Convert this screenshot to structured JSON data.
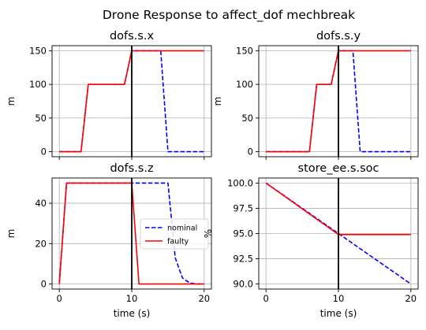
{
  "figure": {
    "title": "Drone Response to affect_dof mechbreak"
  },
  "colors": {
    "nominal": "#0000ff",
    "faulty": "#ff0000",
    "fault_line": "#000000",
    "grid": "#b0b0b0"
  },
  "chart_data": [
    {
      "type": "line",
      "title": "dofs.s.x",
      "xlabel": "",
      "ylabel": "m",
      "xlim": [
        -1,
        21
      ],
      "ylim": [
        -7.5,
        157.5
      ],
      "xticks": [
        0,
        10,
        20
      ],
      "xtick_labels": [
        "",
        "",
        ""
      ],
      "yticks": [
        0,
        50,
        100,
        150
      ],
      "ytick_labels": [
        "0",
        "50",
        "100",
        "150"
      ],
      "grid": true,
      "fault_time": 10,
      "series": [
        {
          "name": "nominal",
          "style": "dashed",
          "color": "#0000ff",
          "x": [
            0,
            3,
            4,
            9,
            10,
            14,
            15,
            20
          ],
          "y": [
            0,
            0,
            100,
            100,
            150,
            150,
            0,
            0
          ]
        },
        {
          "name": "faulty",
          "style": "solid",
          "color": "#ff0000",
          "x": [
            0,
            3,
            4,
            9,
            10,
            20
          ],
          "y": [
            0,
            0,
            100,
            100,
            150,
            150
          ]
        }
      ]
    },
    {
      "type": "line",
      "title": "dofs.s.y",
      "xlabel": "",
      "ylabel": "m",
      "xlim": [
        -1,
        21
      ],
      "ylim": [
        -7.5,
        157.5
      ],
      "xticks": [
        0,
        10,
        20
      ],
      "xtick_labels": [
        "",
        "",
        ""
      ],
      "yticks": [
        0,
        50,
        100,
        150
      ],
      "ytick_labels": [
        "0",
        "50",
        "100",
        "150"
      ],
      "grid": true,
      "fault_time": 10,
      "series": [
        {
          "name": "nominal",
          "style": "dashed",
          "color": "#0000ff",
          "x": [
            0,
            6,
            7,
            9,
            10,
            12,
            13,
            20
          ],
          "y": [
            0,
            0,
            100,
            100,
            150,
            150,
            0,
            0
          ]
        },
        {
          "name": "faulty",
          "style": "solid",
          "color": "#ff0000",
          "x": [
            0,
            6,
            7,
            9,
            10,
            20
          ],
          "y": [
            0,
            0,
            100,
            100,
            150,
            150
          ]
        }
      ]
    },
    {
      "type": "line",
      "title": "dofs.s.z",
      "xlabel": "time (s)",
      "ylabel": "m",
      "xlim": [
        -1,
        21
      ],
      "ylim": [
        -2.5,
        52.5
      ],
      "xticks": [
        0,
        10,
        20
      ],
      "xtick_labels": [
        "0",
        "10",
        "20"
      ],
      "yticks": [
        0,
        20,
        40
      ],
      "ytick_labels": [
        "0",
        "20",
        "40"
      ],
      "grid": true,
      "fault_time": 10,
      "legend": {
        "placement": "center-right",
        "entries": [
          "nominal",
          "faulty"
        ]
      },
      "series": [
        {
          "name": "nominal",
          "style": "dashed",
          "color": "#0000ff",
          "x": [
            0,
            1,
            15,
            16,
            17,
            18,
            19,
            20
          ],
          "y": [
            0,
            50,
            50,
            13,
            3,
            0.5,
            0,
            0
          ]
        },
        {
          "name": "faulty",
          "style": "solid",
          "color": "#ff0000",
          "x": [
            0,
            1,
            10,
            11,
            20
          ],
          "y": [
            0,
            50,
            50,
            0,
            0
          ]
        }
      ]
    },
    {
      "type": "line",
      "title": "store_ee.s.soc",
      "xlabel": "time (s)",
      "ylabel": "%",
      "xlim": [
        -1,
        21
      ],
      "ylim": [
        89.5,
        100.5
      ],
      "xticks": [
        0,
        10,
        20
      ],
      "xtick_labels": [
        "0",
        "10",
        "20"
      ],
      "yticks": [
        90.0,
        92.5,
        95.0,
        97.5,
        100.0
      ],
      "ytick_labels": [
        "90.0",
        "92.5",
        "95.0",
        "97.5",
        "100.0"
      ],
      "grid": true,
      "fault_time": 10,
      "series": [
        {
          "name": "nominal",
          "style": "dashed",
          "color": "#0000ff",
          "x": [
            0,
            20
          ],
          "y": [
            100.0,
            90.0
          ]
        },
        {
          "name": "faulty",
          "style": "solid",
          "color": "#ff0000",
          "x": [
            0,
            10,
            20
          ],
          "y": [
            100.0,
            94.9,
            94.9
          ]
        }
      ]
    }
  ]
}
